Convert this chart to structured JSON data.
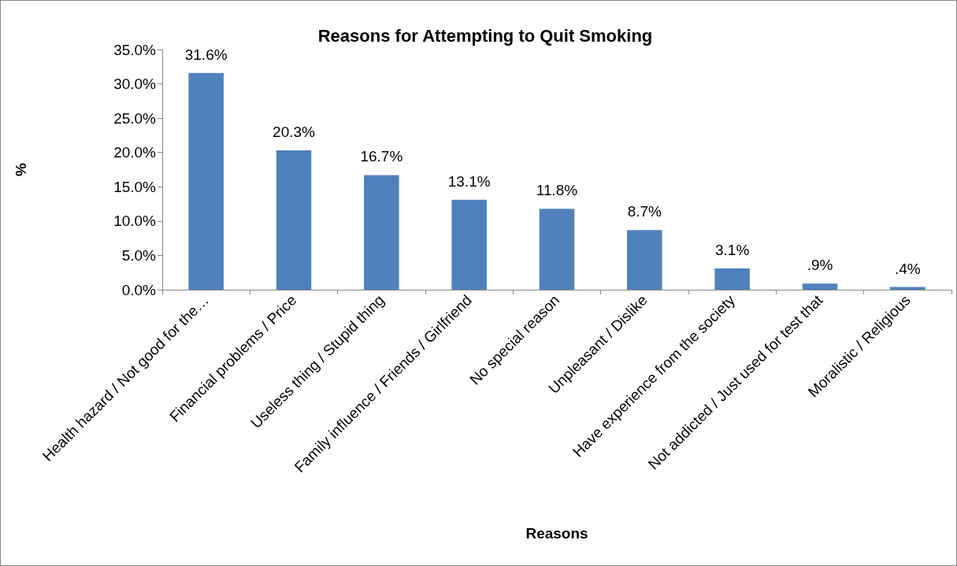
{
  "chart_data": {
    "type": "bar",
    "title": "Reasons for Attempting to Quit Smoking",
    "xlabel": "Reasons",
    "ylabel": "%",
    "categories": [
      "Health hazard / Not good for the…",
      "Financial problems / Price",
      "Useless thing / Stupid thing",
      "Family influence / Friends / Girlfriend",
      "No special reason",
      "Unpleasant / Dislike",
      "Have experience from the society",
      "Not addicted / Just used for test that",
      "Moralistic / Religious"
    ],
    "values": [
      31.6,
      20.3,
      16.7,
      13.1,
      11.8,
      8.7,
      3.1,
      0.9,
      0.4
    ],
    "value_labels": [
      "31.6%",
      "20.3%",
      "16.7%",
      "13.1%",
      "11.8%",
      "8.7%",
      "3.1%",
      ".9%",
      ".4%"
    ],
    "color": "#4f81bd",
    "ylim": [
      0,
      35
    ],
    "yticks": [
      {
        "value": 0,
        "label": "0.0%"
      },
      {
        "value": 5,
        "label": "5.0%"
      },
      {
        "value": 10,
        "label": "10.0%"
      },
      {
        "value": 15,
        "label": "15.0%"
      },
      {
        "value": 20,
        "label": "20.0%"
      },
      {
        "value": 25,
        "label": "25.0%"
      },
      {
        "value": 30,
        "label": "30.0%"
      },
      {
        "value": 35,
        "label": "35.0%"
      }
    ],
    "grid": false
  }
}
